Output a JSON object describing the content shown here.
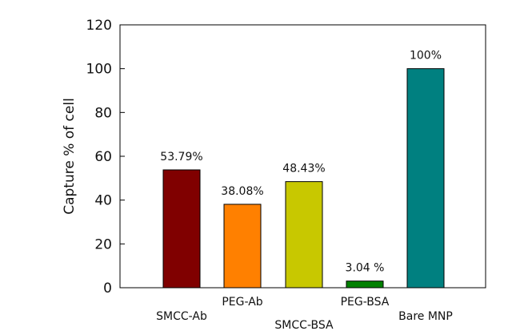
{
  "chart_data": {
    "type": "bar",
    "title": "",
    "xlabel": "",
    "ylabel": "Capture % of cell",
    "ylim": [
      0,
      120
    ],
    "yticks": [
      0,
      20,
      40,
      60,
      80,
      100,
      120
    ],
    "grid": false,
    "legend": "none",
    "categories": [
      "SMCC-Ab",
      "PEG-Ab",
      "SMCC-BSA",
      "PEG-BSA",
      "Bare MNP"
    ],
    "values": [
      53.79,
      38.08,
      48.43,
      3.04,
      100
    ],
    "data_labels": [
      "53.79%",
      "38.08%",
      "48.43%",
      "3.04 %",
      "100%"
    ],
    "colors": [
      "#800000",
      "#ff8000",
      "#c8c800",
      "#008000",
      "#008080"
    ]
  }
}
